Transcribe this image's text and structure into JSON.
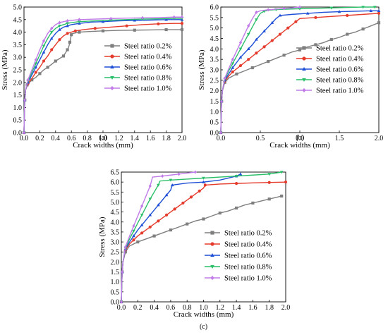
{
  "colors": {
    "steel_0_2": "#7f7f7f",
    "steel_0_4": "#e53b2c",
    "steel_0_6": "#1e4fd6",
    "steel_0_8": "#2bbf6a",
    "steel_1_0": "#c07be8"
  },
  "chart_data": [
    {
      "type": "line",
      "panel": "(a)",
      "xlabel": "Crack widths (mm)",
      "ylabel": "Stress (MPa)",
      "xlim": [
        0,
        2.0
      ],
      "ylim": [
        0,
        5.0
      ],
      "xticks": [
        "0.0",
        "0.2",
        "0.4",
        "0.6",
        "0.8",
        "1.0",
        "1.2",
        "1.4",
        "1.6",
        "1.8",
        "2.0"
      ],
      "yticks": [
        "0.0",
        "0.5",
        "1.0",
        "1.5",
        "2.0",
        "2.5",
        "3.0",
        "3.5",
        "4.0",
        "4.5",
        "5.0"
      ],
      "legend_position": "center-right",
      "series": [
        {
          "name": "Steel ratio 0.2%",
          "marker": "square",
          "color_key": "steel_0_2",
          "x": [
            0,
            0.005,
            0.01,
            0.02,
            0.04,
            0.07,
            0.1,
            0.15,
            0.2,
            0.25,
            0.3,
            0.35,
            0.4,
            0.45,
            0.5,
            0.53,
            0.55,
            0.57,
            0.58,
            0.59,
            0.6,
            0.62,
            0.7,
            0.85,
            1.0,
            1.2,
            1.4,
            1.6,
            1.8,
            2.0
          ],
          "y": [
            0,
            0.8,
            1.3,
            1.7,
            1.9,
            2.0,
            2.1,
            2.2,
            2.35,
            2.5,
            2.6,
            2.72,
            2.85,
            2.95,
            3.05,
            3.2,
            3.3,
            3.45,
            3.6,
            3.75,
            3.9,
            3.95,
            4.0,
            4.03,
            4.05,
            4.07,
            4.08,
            4.09,
            4.1,
            4.1
          ]
        },
        {
          "name": "Steel ratio 0.4%",
          "marker": "circle",
          "color_key": "steel_0_4",
          "x": [
            0,
            0.005,
            0.01,
            0.02,
            0.05,
            0.1,
            0.15,
            0.2,
            0.25,
            0.3,
            0.35,
            0.4,
            0.45,
            0.5,
            0.55,
            0.6,
            0.65,
            0.75,
            0.9,
            1.1,
            1.3,
            1.5,
            1.7,
            1.9,
            2.0
          ],
          "y": [
            0,
            0.8,
            1.3,
            1.7,
            1.95,
            2.15,
            2.4,
            2.6,
            2.85,
            3.05,
            3.3,
            3.5,
            3.7,
            3.85,
            3.95,
            4.0,
            4.05,
            4.1,
            4.15,
            4.2,
            4.25,
            4.3,
            4.33,
            4.35,
            4.35
          ]
        },
        {
          "name": "Steel ratio 0.6%",
          "marker": "triangle-up",
          "color_key": "steel_0_6",
          "x": [
            0,
            0.005,
            0.01,
            0.02,
            0.05,
            0.1,
            0.15,
            0.2,
            0.25,
            0.3,
            0.35,
            0.4,
            0.45,
            0.5,
            0.55,
            0.6,
            0.7,
            0.85,
            1.0,
            1.2,
            1.4,
            1.6,
            1.8,
            2.0
          ],
          "y": [
            0,
            0.8,
            1.3,
            1.7,
            2.0,
            2.3,
            2.6,
            2.9,
            3.2,
            3.5,
            3.75,
            3.95,
            4.1,
            4.2,
            4.25,
            4.3,
            4.35,
            4.4,
            4.42,
            4.45,
            4.47,
            4.48,
            4.5,
            4.5
          ]
        },
        {
          "name": "Steel ratio 0.8%",
          "marker": "triangle-down",
          "color_key": "steel_0_8",
          "x": [
            0,
            0.005,
            0.01,
            0.02,
            0.05,
            0.1,
            0.15,
            0.2,
            0.25,
            0.3,
            0.35,
            0.4,
            0.45,
            0.5,
            0.55,
            0.6,
            0.7,
            0.9,
            1.1,
            1.3,
            1.5,
            1.7,
            1.9,
            2.0
          ],
          "y": [
            0,
            0.8,
            1.3,
            1.7,
            2.05,
            2.4,
            2.75,
            3.1,
            3.45,
            3.75,
            4.0,
            4.15,
            4.25,
            4.3,
            4.35,
            4.38,
            4.42,
            4.45,
            4.48,
            4.5,
            4.52,
            4.53,
            4.55,
            4.55
          ]
        },
        {
          "name": "Steel ratio 1.0%",
          "marker": "diamond",
          "color_key": "steel_1_0",
          "x": [
            0,
            0.005,
            0.01,
            0.02,
            0.05,
            0.1,
            0.15,
            0.2,
            0.25,
            0.3,
            0.35,
            0.4,
            0.45,
            0.5,
            0.55,
            0.6,
            0.7,
            0.9,
            1.1,
            1.3,
            1.5,
            1.7,
            1.9,
            2.0
          ],
          "y": [
            0,
            0.8,
            1.3,
            1.7,
            2.1,
            2.5,
            2.9,
            3.3,
            3.65,
            3.95,
            4.15,
            4.3,
            4.38,
            4.42,
            4.45,
            4.47,
            4.5,
            4.52,
            4.54,
            4.56,
            4.57,
            4.58,
            4.6,
            4.6
          ]
        }
      ]
    },
    {
      "type": "line",
      "panel": "(b)",
      "xlabel": "Crack widths (mm)",
      "ylabel": "Stress (MPa)",
      "xlim": [
        0,
        2.0
      ],
      "ylim": [
        0,
        6.0
      ],
      "xticks": [
        "0.0",
        "0.5",
        "1.0",
        "1.5",
        "2.0"
      ],
      "yticks": [
        "0.0",
        "0.5",
        "1.0",
        "1.5",
        "2.0",
        "2.5",
        "3.0",
        "3.5",
        "4.0",
        "4.5",
        "5.0",
        "5.5",
        "6.0"
      ],
      "legend_position": "center-right",
      "series": [
        {
          "name": "Steel ratio 0.2%",
          "marker": "square",
          "color_key": "steel_0_2",
          "x": [
            0,
            0.005,
            0.01,
            0.02,
            0.05,
            0.1,
            0.2,
            0.3,
            0.4,
            0.5,
            0.6,
            0.7,
            0.8,
            0.9,
            1.0,
            1.1,
            1.2,
            1.3,
            1.4,
            1.5,
            1.6,
            1.7,
            1.8,
            1.9,
            2.0
          ],
          "y": [
            0,
            0.9,
            1.5,
            2.0,
            2.4,
            2.6,
            2.8,
            2.95,
            3.1,
            3.25,
            3.4,
            3.55,
            3.7,
            3.85,
            3.95,
            4.1,
            4.2,
            4.3,
            4.45,
            4.55,
            4.7,
            4.8,
            4.95,
            5.1,
            5.25
          ]
        },
        {
          "name": "Steel ratio 0.4%",
          "marker": "circle",
          "color_key": "steel_0_4",
          "x": [
            0,
            0.005,
            0.01,
            0.02,
            0.05,
            0.1,
            0.15,
            0.2,
            0.25,
            0.3,
            0.35,
            0.4,
            0.45,
            0.5,
            0.55,
            0.6,
            0.65,
            0.7,
            0.75,
            0.8,
            0.85,
            0.9,
            0.95,
            1.0,
            1.2,
            1.4,
            1.6,
            1.8,
            2.0
          ],
          "y": [
            0,
            0.9,
            1.5,
            2.0,
            2.45,
            2.7,
            2.9,
            3.05,
            3.2,
            3.35,
            3.5,
            3.65,
            3.8,
            3.95,
            4.1,
            4.25,
            4.4,
            4.55,
            4.7,
            4.85,
            5.0,
            5.15,
            5.3,
            5.45,
            5.5,
            5.55,
            5.6,
            5.65,
            5.7
          ]
        },
        {
          "name": "Steel ratio 0.6%",
          "marker": "triangle-up",
          "color_key": "steel_0_6",
          "x": [
            0,
            0.005,
            0.01,
            0.02,
            0.05,
            0.1,
            0.15,
            0.2,
            0.25,
            0.3,
            0.35,
            0.4,
            0.45,
            0.5,
            0.55,
            0.6,
            0.65,
            0.7,
            0.75,
            0.9,
            1.1,
            1.3,
            1.5,
            1.7,
            1.9,
            2.0
          ],
          "y": [
            0,
            0.9,
            1.5,
            2.0,
            2.5,
            2.8,
            3.1,
            3.35,
            3.6,
            3.8,
            4.0,
            4.2,
            4.45,
            4.65,
            4.85,
            5.05,
            5.25,
            5.45,
            5.6,
            5.65,
            5.7,
            5.75,
            5.78,
            5.8,
            5.82,
            5.82
          ]
        },
        {
          "name": "Steel ratio 0.8%",
          "marker": "triangle-down",
          "color_key": "steel_0_8",
          "x": [
            0,
            0.005,
            0.01,
            0.02,
            0.05,
            0.1,
            0.15,
            0.2,
            0.25,
            0.3,
            0.35,
            0.4,
            0.45,
            0.5,
            0.55,
            0.6,
            0.7,
            0.85,
            1.0,
            1.2,
            1.4,
            1.6,
            1.8,
            1.95
          ],
          "y": [
            0,
            0.9,
            1.5,
            2.0,
            2.55,
            2.95,
            3.3,
            3.65,
            4.0,
            4.35,
            4.7,
            5.05,
            5.4,
            5.7,
            5.8,
            5.85,
            5.88,
            5.9,
            5.92,
            5.94,
            5.96,
            5.98,
            6.0,
            6.02
          ]
        },
        {
          "name": "Steel ratio 1.0%",
          "marker": "diamond",
          "color_key": "steel_1_0",
          "x": [
            0,
            0.005,
            0.01,
            0.02,
            0.05,
            0.1,
            0.15,
            0.2,
            0.25,
            0.3,
            0.35,
            0.4,
            0.45,
            0.5,
            0.6,
            0.7,
            0.8,
            0.9,
            1.0
          ],
          "y": [
            0,
            0.9,
            1.5,
            2.0,
            2.6,
            3.05,
            3.5,
            3.9,
            4.3,
            4.7,
            5.1,
            5.45,
            5.75,
            5.82,
            5.87,
            5.9,
            5.93,
            5.96,
            6.0
          ]
        }
      ]
    },
    {
      "type": "line",
      "panel": "(c)",
      "xlabel": "Crack widths (mm)",
      "ylabel": "Stress (MPa)",
      "xlim": [
        0,
        2.0
      ],
      "ylim": [
        0,
        6.5
      ],
      "xticks": [
        "0.0",
        "0.2",
        "0.4",
        "0.6",
        "0.8",
        "1.0",
        "1.2",
        "1.4",
        "1.6",
        "1.8",
        "2.0"
      ],
      "yticks": [
        "0.0",
        "0.5",
        "1.0",
        "1.5",
        "2.0",
        "2.5",
        "3.0",
        "3.5",
        "4.0",
        "4.5",
        "5.0",
        "5.5",
        "6.0",
        "6.5"
      ],
      "legend_position": "center-right",
      "series": [
        {
          "name": "Steel ratio 0.2%",
          "marker": "square",
          "color_key": "steel_0_2",
          "x": [
            0,
            0.005,
            0.01,
            0.02,
            0.05,
            0.1,
            0.2,
            0.3,
            0.4,
            0.5,
            0.6,
            0.7,
            0.8,
            0.9,
            1.0,
            1.1,
            1.2,
            1.3,
            1.4,
            1.5,
            1.6,
            1.7,
            1.8,
            1.9,
            1.95
          ],
          "y": [
            0,
            0.9,
            1.5,
            2.0,
            2.5,
            2.8,
            3.0,
            3.15,
            3.3,
            3.45,
            3.6,
            3.75,
            3.9,
            4.05,
            4.15,
            4.3,
            4.45,
            4.55,
            4.7,
            4.85,
            4.95,
            5.05,
            5.15,
            5.25,
            5.3
          ]
        },
        {
          "name": "Steel ratio 0.4%",
          "marker": "circle",
          "color_key": "steel_0_4",
          "x": [
            0,
            0.005,
            0.01,
            0.02,
            0.05,
            0.1,
            0.15,
            0.2,
            0.25,
            0.3,
            0.35,
            0.4,
            0.45,
            0.5,
            0.55,
            0.6,
            0.65,
            0.7,
            0.75,
            0.8,
            0.85,
            0.9,
            0.95,
            1.0,
            1.02,
            1.2,
            1.4,
            1.6,
            1.8,
            2.0
          ],
          "y": [
            0,
            0.9,
            1.5,
            2.0,
            2.6,
            2.9,
            3.1,
            3.3,
            3.45,
            3.6,
            3.75,
            3.9,
            4.05,
            4.2,
            4.35,
            4.5,
            4.65,
            4.8,
            4.95,
            5.1,
            5.25,
            5.4,
            5.55,
            5.7,
            5.85,
            5.9,
            5.93,
            5.96,
            5.98,
            6.0
          ]
        },
        {
          "name": "Steel ratio 0.6%",
          "marker": "triangle-up",
          "color_key": "steel_0_6",
          "x": [
            0,
            0.005,
            0.01,
            0.02,
            0.05,
            0.1,
            0.15,
            0.2,
            0.25,
            0.3,
            0.35,
            0.4,
            0.45,
            0.5,
            0.55,
            0.6,
            0.62,
            0.8,
            1.0,
            1.2,
            1.4,
            1.45
          ],
          "y": [
            0,
            0.9,
            1.5,
            2.0,
            2.65,
            3.0,
            3.3,
            3.6,
            3.85,
            4.1,
            4.35,
            4.6,
            4.85,
            5.1,
            5.35,
            5.6,
            5.85,
            5.95,
            6.0,
            6.1,
            6.3,
            6.4
          ]
        },
        {
          "name": "Steel ratio 0.8%",
          "marker": "triangle-down",
          "color_key": "steel_0_8",
          "x": [
            0,
            0.005,
            0.01,
            0.02,
            0.05,
            0.1,
            0.15,
            0.2,
            0.25,
            0.3,
            0.35,
            0.4,
            0.45,
            0.47,
            0.6,
            0.8,
            1.0,
            1.2,
            1.4,
            1.6,
            1.8,
            1.95
          ],
          "y": [
            0,
            0.9,
            1.5,
            2.0,
            2.7,
            3.15,
            3.55,
            3.95,
            4.35,
            4.75,
            5.15,
            5.5,
            5.85,
            6.05,
            6.1,
            6.15,
            6.2,
            6.25,
            6.3,
            6.35,
            6.4,
            6.5
          ]
        },
        {
          "name": "Steel ratio 1.0%",
          "marker": "diamond",
          "color_key": "steel_1_0",
          "x": [
            0,
            0.005,
            0.01,
            0.02,
            0.05,
            0.1,
            0.15,
            0.2,
            0.25,
            0.3,
            0.35,
            0.38,
            0.5,
            0.6,
            0.7,
            0.8,
            0.9
          ],
          "y": [
            0,
            0.9,
            1.5,
            2.0,
            2.75,
            3.3,
            3.8,
            4.3,
            4.8,
            5.3,
            5.8,
            6.25,
            6.3,
            6.35,
            6.4,
            6.45,
            6.5
          ]
        }
      ]
    }
  ]
}
